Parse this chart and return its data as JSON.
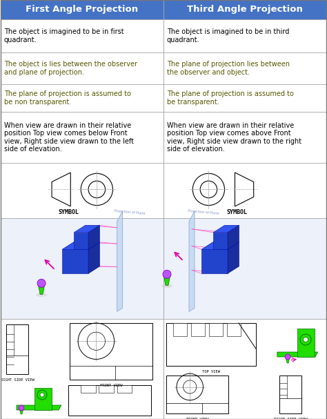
{
  "title_left": "First Angle Projection",
  "title_right": "Third Angle Projection",
  "title_bg": "#4472C4",
  "title_fg": "#FFFFFF",
  "header_fontsize": 9.5,
  "body_fontsize": 7.0,
  "symbol_fontsize": 6.0,
  "rows": [
    [
      "The object is imagined to be in first\nquadrant.",
      "The object is imagined to be in third\nquadrant."
    ],
    [
      "The object is lies between the observer\nand plane of projection.",
      "The plane of projection lies between\nthe observer and object."
    ],
    [
      "The plane of projection is assumed to\nbe non transparent.",
      "The plane of projection is assumed to\nbe transparent."
    ],
    [
      "When view are drawn in their relative\nposition Top view comes below Front\nview, Right side view drawn to the left\nside of elevation.",
      "When view are drawn in their relative\nposition Top view comes above Front\nview, Right side view drawn to the right\nside of elevation."
    ]
  ],
  "border_color": "#AAAAAA",
  "lw": 0.6,
  "blue_dark": "#1A2E9E",
  "blue_mid": "#2244CC",
  "blue_light": "#3355EE",
  "green_bright": "#22DD00",
  "green_dark": "#006600",
  "pink": "#DD00AA",
  "plane_color": "#B8D4F0",
  "plane_line": "#8899CC"
}
